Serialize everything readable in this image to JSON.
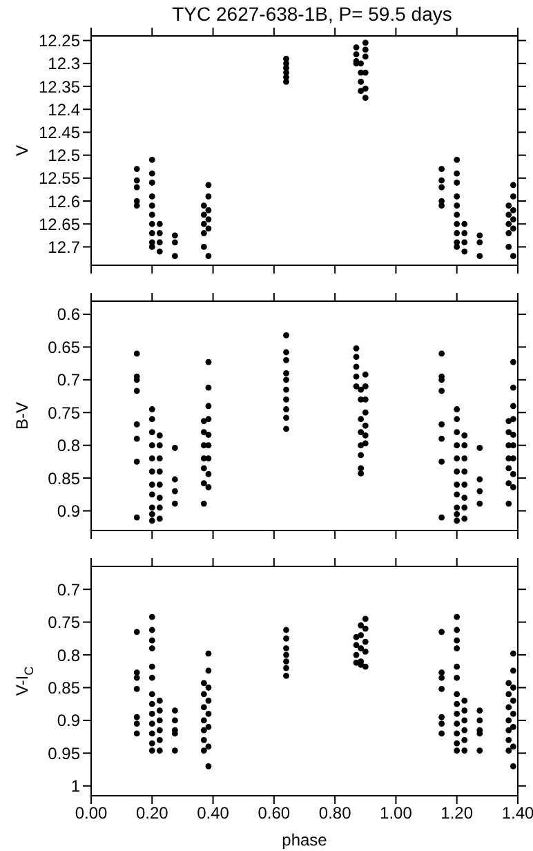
{
  "chart_data": [
    {
      "type": "scatter",
      "title": "TYC 2627-638-1B, P= 59.5 days",
      "ylabel": "V",
      "marker": "circle",
      "legend": false,
      "grid": false,
      "tick_labels": "y",
      "xlim": [
        0,
        1.4
      ],
      "xticks": [
        {
          "value": 0,
          "label": null
        },
        {
          "value": 0.2,
          "label": null
        },
        {
          "value": 0.4,
          "label": null
        },
        {
          "value": 0.6,
          "label": null
        },
        {
          "value": 0.8,
          "label": null
        },
        {
          "value": 1,
          "label": null
        },
        {
          "value": 1.2,
          "label": null
        },
        {
          "value": 1.4,
          "label": null
        }
      ],
      "ylim": [
        12.74,
        12.24
      ],
      "yticks": [
        12.25,
        12.3,
        12.35,
        12.4,
        12.45,
        12.5,
        12.55,
        12.6,
        12.65,
        12.7
      ],
      "series": [
        {
          "color": "#000000",
          "x": [
            0.15,
            0.15,
            0.15,
            0.15,
            0.15,
            0.2,
            0.2,
            0.2,
            0.2,
            0.2,
            0.2,
            0.2,
            0.2,
            0.2,
            0.2,
            0.225,
            0.225,
            0.225,
            0.225,
            0.275,
            0.275,
            0.275,
            0.37,
            0.37,
            0.37,
            0.37,
            0.37,
            0.385,
            0.385,
            0.385,
            0.385,
            0.385,
            0.385,
            0.64,
            0.64,
            0.64,
            0.64,
            0.64,
            0.64,
            0.87,
            0.87,
            0.87,
            0.87,
            0.885,
            0.885,
            0.885,
            0.885,
            0.9,
            0.9,
            0.9,
            0.9,
            0.9,
            0.9,
            1.15,
            1.15,
            1.15,
            1.15,
            1.15,
            1.2,
            1.2,
            1.2,
            1.2,
            1.2,
            1.2,
            1.2,
            1.2,
            1.2,
            1.2,
            1.225,
            1.225,
            1.225,
            1.225,
            1.275,
            1.275,
            1.275,
            1.37,
            1.37,
            1.37,
            1.37,
            1.37,
            1.385,
            1.385,
            1.385,
            1.385,
            1.385,
            1.385
          ],
          "values": [
            12.53,
            12.555,
            12.57,
            12.6,
            12.61,
            12.51,
            12.54,
            12.56,
            12.59,
            12.61,
            12.63,
            12.65,
            12.67,
            12.69,
            12.7,
            12.65,
            12.67,
            12.69,
            12.71,
            12.675,
            12.69,
            12.72,
            12.61,
            12.63,
            12.65,
            12.67,
            12.7,
            12.565,
            12.59,
            12.62,
            12.64,
            12.66,
            12.72,
            12.29,
            12.3,
            12.31,
            12.32,
            12.33,
            12.34,
            12.265,
            12.28,
            12.295,
            12.3,
            12.3,
            12.32,
            12.34,
            12.36,
            12.255,
            12.27,
            12.285,
            12.32,
            12.355,
            12.375,
            12.53,
            12.555,
            12.57,
            12.6,
            12.61,
            12.51,
            12.54,
            12.56,
            12.59,
            12.61,
            12.63,
            12.65,
            12.67,
            12.69,
            12.7,
            12.65,
            12.67,
            12.69,
            12.71,
            12.675,
            12.69,
            12.72,
            12.61,
            12.63,
            12.65,
            12.67,
            12.7,
            12.565,
            12.59,
            12.62,
            12.64,
            12.66,
            12.72
          ]
        }
      ]
    },
    {
      "type": "scatter",
      "ylabel": "B-V",
      "marker": "circle",
      "legend": false,
      "grid": false,
      "tick_labels": "y",
      "xlim": [
        0,
        1.4
      ],
      "xticks": [
        {
          "value": 0,
          "label": null
        },
        {
          "value": 0.2,
          "label": null
        },
        {
          "value": 0.4,
          "label": null
        },
        {
          "value": 0.6,
          "label": null
        },
        {
          "value": 0.8,
          "label": null
        },
        {
          "value": 1,
          "label": null
        },
        {
          "value": 1.2,
          "label": null
        },
        {
          "value": 1.4,
          "label": null
        }
      ],
      "ylim": [
        0.93,
        0.58
      ],
      "yticks": [
        0.6,
        0.65,
        0.7,
        0.75,
        0.8,
        0.85,
        0.9
      ],
      "series": [
        {
          "color": "#000000",
          "x": [
            0.15,
            0.15,
            0.15,
            0.15,
            0.15,
            0.15,
            0.15,
            0.15,
            0.2,
            0.2,
            0.2,
            0.2,
            0.2,
            0.2,
            0.2,
            0.2,
            0.2,
            0.2,
            0.2,
            0.225,
            0.225,
            0.225,
            0.225,
            0.225,
            0.225,
            0.225,
            0.225,
            0.275,
            0.275,
            0.275,
            0.275,
            0.37,
            0.37,
            0.37,
            0.37,
            0.37,
            0.37,
            0.37,
            0.385,
            0.385,
            0.385,
            0.385,
            0.385,
            0.385,
            0.385,
            0.385,
            0.385,
            0.64,
            0.64,
            0.64,
            0.64,
            0.64,
            0.64,
            0.64,
            0.64,
            0.64,
            0.64,
            0.87,
            0.87,
            0.87,
            0.87,
            0.87,
            0.885,
            0.885,
            0.885,
            0.885,
            0.885,
            0.885,
            0.885,
            0.885,
            0.9,
            0.9,
            0.9,
            0.9,
            0.9,
            0.9,
            0.9,
            1.15,
            1.15,
            1.15,
            1.15,
            1.15,
            1.15,
            1.15,
            1.15,
            1.2,
            1.2,
            1.2,
            1.2,
            1.2,
            1.2,
            1.2,
            1.2,
            1.2,
            1.2,
            1.2,
            1.225,
            1.225,
            1.225,
            1.225,
            1.225,
            1.225,
            1.225,
            1.225,
            1.275,
            1.275,
            1.275,
            1.275,
            1.37,
            1.37,
            1.37,
            1.37,
            1.37,
            1.37,
            1.37,
            1.385,
            1.385,
            1.385,
            1.385,
            1.385,
            1.385,
            1.385,
            1.385,
            1.385
          ],
          "values": [
            0.66,
            0.695,
            0.7,
            0.717,
            0.768,
            0.79,
            0.825,
            0.91,
            0.745,
            0.76,
            0.78,
            0.8,
            0.82,
            0.84,
            0.86,
            0.875,
            0.895,
            0.905,
            0.915,
            0.785,
            0.8,
            0.82,
            0.84,
            0.86,
            0.88,
            0.895,
            0.912,
            0.804,
            0.852,
            0.87,
            0.889,
            0.763,
            0.78,
            0.8,
            0.82,
            0.835,
            0.858,
            0.889,
            0.673,
            0.712,
            0.74,
            0.76,
            0.784,
            0.8,
            0.82,
            0.844,
            0.864,
            0.632,
            0.658,
            0.67,
            0.69,
            0.7,
            0.715,
            0.73,
            0.745,
            0.758,
            0.775,
            0.652,
            0.665,
            0.68,
            0.695,
            0.71,
            0.715,
            0.73,
            0.76,
            0.78,
            0.8,
            0.815,
            0.835,
            0.843,
            0.692,
            0.71,
            0.73,
            0.75,
            0.77,
            0.785,
            0.797,
            0.66,
            0.695,
            0.7,
            0.717,
            0.768,
            0.79,
            0.825,
            0.91,
            0.745,
            0.76,
            0.78,
            0.8,
            0.82,
            0.84,
            0.86,
            0.875,
            0.895,
            0.905,
            0.915,
            0.785,
            0.8,
            0.82,
            0.84,
            0.86,
            0.88,
            0.895,
            0.912,
            0.804,
            0.852,
            0.87,
            0.889,
            0.763,
            0.78,
            0.8,
            0.82,
            0.835,
            0.858,
            0.889,
            0.673,
            0.712,
            0.74,
            0.76,
            0.784,
            0.8,
            0.82,
            0.844,
            0.864
          ]
        }
      ]
    },
    {
      "type": "scatter",
      "ylabel": "V-I$_{C}$",
      "xlabel": "phase",
      "marker": "circle",
      "legend": false,
      "grid": false,
      "xlim": [
        0,
        1.4
      ],
      "xticks": [
        {
          "value": 0,
          "label": "0.00"
        },
        {
          "value": 0.2,
          "label": "0.20"
        },
        {
          "value": 0.4,
          "label": "0.40"
        },
        {
          "value": 0.6,
          "label": "0.60"
        },
        {
          "value": 0.8,
          "label": "0.80"
        },
        {
          "value": 1,
          "label": "1.00"
        },
        {
          "value": 1.2,
          "label": "1.20"
        },
        {
          "value": 1.4,
          "label": "1.40"
        }
      ],
      "ylim": [
        1.015,
        0.665
      ],
      "yticks": [
        0.7,
        0.75,
        0.8,
        0.85,
        0.9,
        0.95,
        1
      ],
      "series": [
        {
          "color": "#000000",
          "x": [
            0.15,
            0.15,
            0.15,
            0.15,
            0.15,
            0.15,
            0.15,
            0.2,
            0.2,
            0.2,
            0.2,
            0.2,
            0.2,
            0.2,
            0.2,
            0.2,
            0.2,
            0.2,
            0.2,
            0.2,
            0.225,
            0.225,
            0.225,
            0.225,
            0.225,
            0.225,
            0.275,
            0.275,
            0.275,
            0.275,
            0.275,
            0.37,
            0.37,
            0.37,
            0.37,
            0.37,
            0.37,
            0.37,
            0.385,
            0.385,
            0.385,
            0.385,
            0.385,
            0.385,
            0.385,
            0.385,
            0.64,
            0.64,
            0.64,
            0.64,
            0.64,
            0.64,
            0.64,
            0.87,
            0.87,
            0.87,
            0.87,
            0.885,
            0.885,
            0.885,
            0.885,
            0.885,
            0.9,
            0.9,
            0.9,
            0.9,
            0.9,
            1.15,
            1.15,
            1.15,
            1.15,
            1.15,
            1.15,
            1.15,
            1.2,
            1.2,
            1.2,
            1.2,
            1.2,
            1.2,
            1.2,
            1.2,
            1.2,
            1.2,
            1.2,
            1.2,
            1.2,
            1.225,
            1.225,
            1.225,
            1.225,
            1.225,
            1.225,
            1.275,
            1.275,
            1.275,
            1.275,
            1.275,
            1.37,
            1.37,
            1.37,
            1.37,
            1.37,
            1.37,
            1.37,
            1.385,
            1.385,
            1.385,
            1.385,
            1.385,
            1.385,
            1.385,
            1.385
          ],
          "values": [
            0.765,
            0.827,
            0.835,
            0.852,
            0.895,
            0.905,
            0.92,
            0.742,
            0.762,
            0.778,
            0.79,
            0.818,
            0.835,
            0.86,
            0.875,
            0.89,
            0.905,
            0.92,
            0.935,
            0.946,
            0.87,
            0.885,
            0.9,
            0.915,
            0.93,
            0.946,
            0.885,
            0.9,
            0.915,
            0.92,
            0.946,
            0.843,
            0.86,
            0.88,
            0.9,
            0.915,
            0.93,
            0.946,
            0.798,
            0.824,
            0.85,
            0.87,
            0.89,
            0.91,
            0.94,
            0.97,
            0.762,
            0.775,
            0.79,
            0.8,
            0.81,
            0.82,
            0.832,
            0.773,
            0.785,
            0.8,
            0.812,
            0.755,
            0.77,
            0.79,
            0.81,
            0.815,
            0.745,
            0.76,
            0.78,
            0.795,
            0.818,
            0.765,
            0.827,
            0.835,
            0.852,
            0.895,
            0.905,
            0.92,
            0.742,
            0.762,
            0.778,
            0.79,
            0.818,
            0.835,
            0.86,
            0.875,
            0.89,
            0.905,
            0.92,
            0.935,
            0.946,
            0.87,
            0.885,
            0.9,
            0.915,
            0.93,
            0.946,
            0.885,
            0.9,
            0.915,
            0.92,
            0.946,
            0.843,
            0.86,
            0.88,
            0.9,
            0.915,
            0.93,
            0.946,
            0.798,
            0.824,
            0.85,
            0.87,
            0.89,
            0.91,
            0.94,
            0.97
          ]
        }
      ]
    }
  ]
}
